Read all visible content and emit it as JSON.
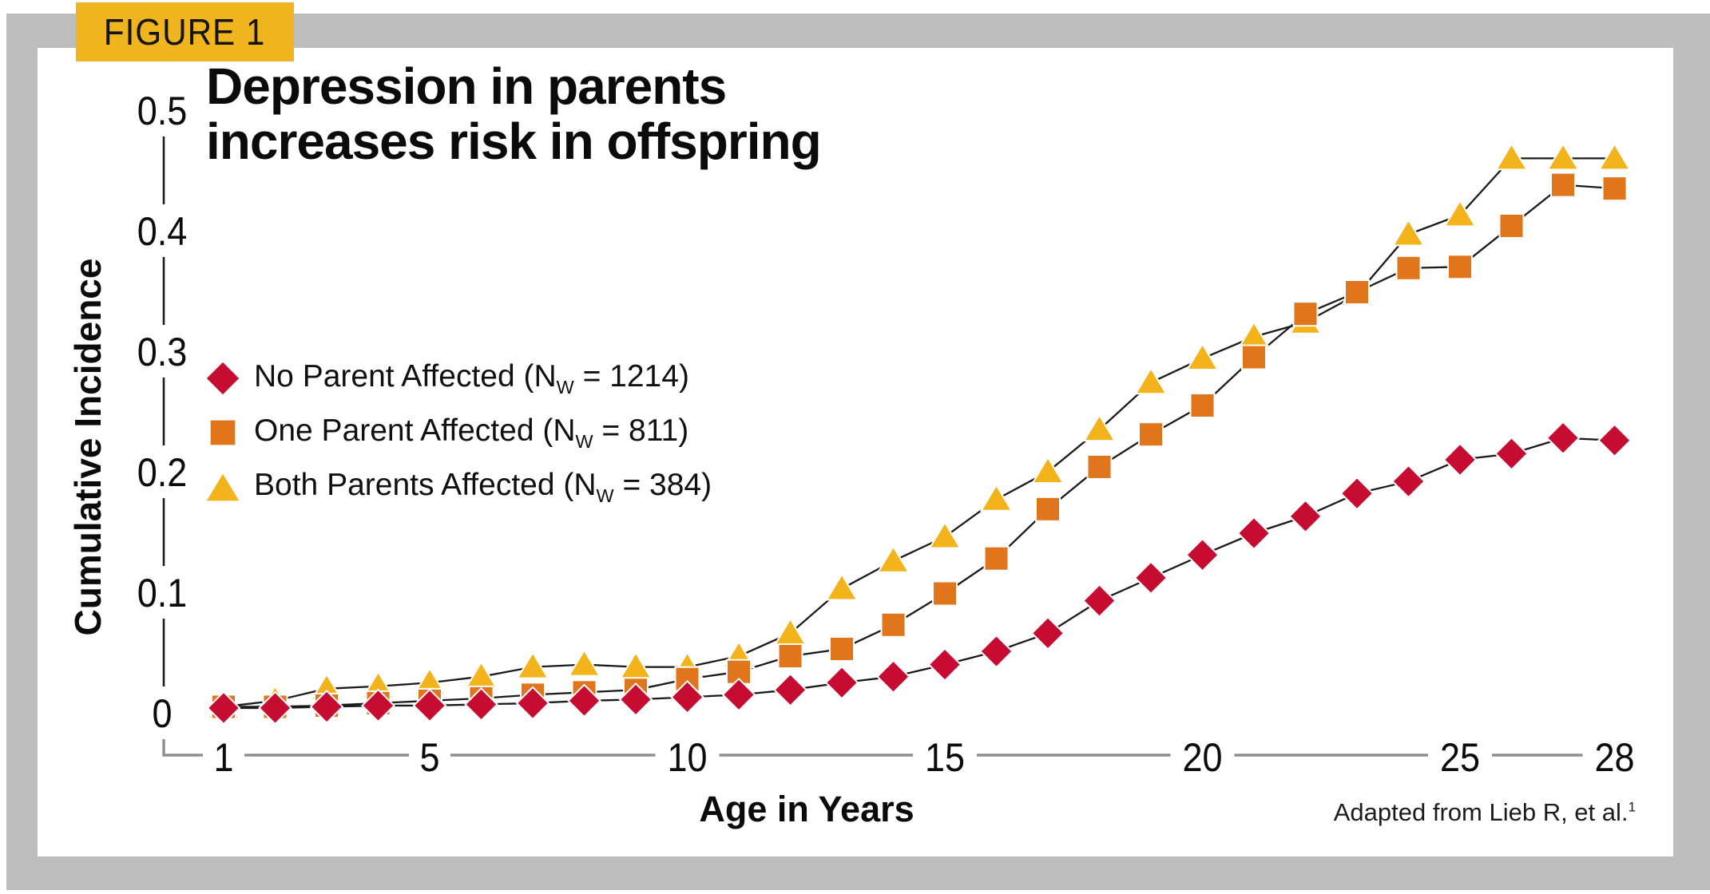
{
  "figure_tab": {
    "label": "FIGURE 1",
    "background": "#F0B51E"
  },
  "title": {
    "text": "Depression in parents\nincreases risk in offspring"
  },
  "axes": {
    "y_label": "Cumulative Incidence",
    "x_label": "Age in Years",
    "y_tick_labels": [
      "0",
      "0.1",
      "0.2",
      "0.3",
      "0.4",
      "0.5"
    ],
    "x_tick_labels": [
      "1",
      "5",
      "10",
      "15",
      "20",
      "25",
      "28"
    ]
  },
  "attribution": {
    "text": "Adapted from Lieb R, et al.",
    "superscript": "1"
  },
  "colors": {
    "frame_gray": "#bdbdbd",
    "tab_yellow": "#F0B51E",
    "series_red": "#C60C30",
    "series_orange": "#E0751C",
    "series_yellow": "#F2B31B",
    "axis_gray": "#9b9b9b",
    "line_black": "#1a1a1a"
  },
  "chart_data": {
    "type": "line",
    "title": "Depression in parents increases risk in offspring",
    "xlabel": "Age in Years",
    "ylabel": "Cumulative Incidence",
    "xlim": [
      1,
      28
    ],
    "ylim": [
      0,
      0.5
    ],
    "xticks": [
      1,
      5,
      10,
      15,
      20,
      25,
      28
    ],
    "yticks": [
      0,
      0.1,
      0.2,
      0.3,
      0.4,
      0.5
    ],
    "grid": false,
    "legend_position": "upper-left-inside",
    "ages": [
      1,
      2,
      3,
      4,
      5,
      6,
      7,
      8,
      9,
      10,
      11,
      12,
      13,
      14,
      15,
      16,
      17,
      18,
      19,
      20,
      21,
      22,
      23,
      24,
      25,
      26,
      27,
      28
    ],
    "series": [
      {
        "name": "No Parent Affected",
        "n_w": 1214,
        "marker": "diamond",
        "color": "#C60C30",
        "legend": {
          "prefix": "No Parent Affected (N",
          "sub": "W",
          "suffix": " = 1214)"
        },
        "values": [
          0.004,
          0.004,
          0.005,
          0.006,
          0.006,
          0.007,
          0.008,
          0.01,
          0.011,
          0.013,
          0.015,
          0.019,
          0.025,
          0.03,
          0.04,
          0.051,
          0.066,
          0.093,
          0.112,
          0.131,
          0.149,
          0.163,
          0.182,
          0.192,
          0.21,
          0.215,
          0.228,
          0.226
        ]
      },
      {
        "name": "One Parent Affected",
        "n_w": 811,
        "marker": "square",
        "color": "#E0751C",
        "legend": {
          "prefix": "One Parent Affected (N",
          "sub": "W",
          "suffix": " = 811)"
        },
        "values": [
          0.005,
          0.005,
          0.006,
          0.008,
          0.01,
          0.012,
          0.015,
          0.017,
          0.019,
          0.028,
          0.034,
          0.047,
          0.053,
          0.073,
          0.099,
          0.128,
          0.169,
          0.204,
          0.231,
          0.255,
          0.295,
          0.331,
          0.349,
          0.369,
          0.37,
          0.404,
          0.438,
          0.435
        ]
      },
      {
        "name": "Both Parents Affected",
        "n_w": 384,
        "marker": "triangle",
        "color": "#F2B31B",
        "legend": {
          "prefix": "Both Parents Affected (N",
          "sub": "W",
          "suffix": " = 384)"
        },
        "values": [
          0.005,
          0.01,
          0.02,
          0.022,
          0.025,
          0.03,
          0.038,
          0.04,
          0.038,
          0.038,
          0.047,
          0.066,
          0.103,
          0.126,
          0.146,
          0.177,
          0.2,
          0.235,
          0.274,
          0.294,
          0.312,
          0.324,
          0.347,
          0.397,
          0.413,
          0.46,
          0.46,
          0.46
        ]
      }
    ]
  }
}
